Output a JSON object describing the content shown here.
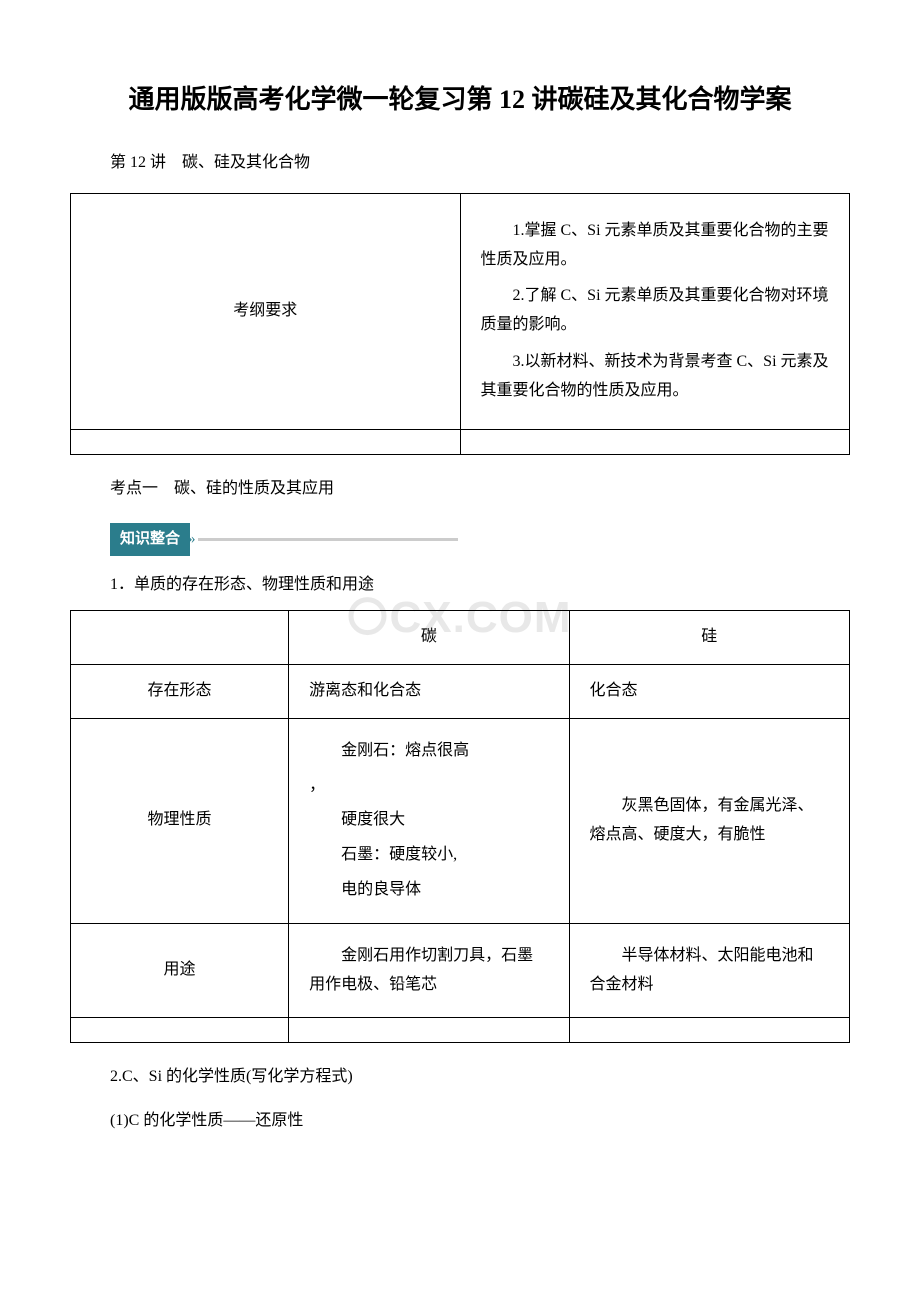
{
  "title": "通用版版高考化学微一轮复习第 12 讲碳硅及其化合物学案",
  "subtitle": "第 12 讲　碳、硅及其化合物",
  "requirements_table": {
    "label": "考纲要求",
    "items": [
      "1.掌握 C、Si 元素单质及其重要化合物的主要性质及应用。",
      "2.了解 C、Si 元素单质及其重要化合物对环境质量的影响。",
      "3.以新材料、新技术为背景考查 C、Si 元素及其重要化合物的性质及应用。"
    ]
  },
  "section1": "考点一　碳、硅的性质及其应用",
  "knowledge_label": "知识整合",
  "heading1": "1．单质的存在形态、物理性质和用途",
  "watermark_text": "CX.COM",
  "properties_table": {
    "columns": [
      "",
      "碳",
      "硅"
    ],
    "rows": [
      {
        "label": "存在形态",
        "carbon": "游离态和化合态",
        "silicon": "化合态"
      },
      {
        "label": "物理性质",
        "carbon_lines": [
          "金刚石：熔点很高",
          "，",
          "硬度很大",
          "石墨：硬度较小,",
          "电的良导体"
        ],
        "silicon": "灰黑色固体，有金属光泽、熔点高、硬度大，有脆性"
      },
      {
        "label": "用途",
        "carbon": "金刚石用作切割刀具，石墨用作电极、铅笔芯",
        "silicon": "半导体材料、太阳能电池和合金材料"
      }
    ]
  },
  "heading2": "2.C、Si 的化学性质(写化学方程式)",
  "heading3": "(1)C 的化学性质——还原性",
  "colors": {
    "banner_bg": "#2b7d8c",
    "banner_text": "#ffffff",
    "line_color": "#cccccc",
    "watermark_color": "#e8e8e8",
    "text_color": "#000000",
    "border_color": "#000000"
  }
}
